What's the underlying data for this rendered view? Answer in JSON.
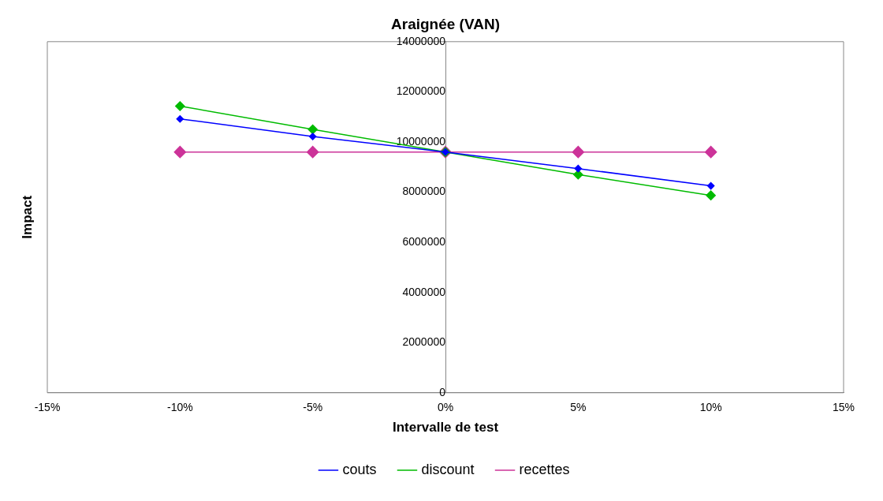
{
  "chart_data": {
    "type": "line",
    "title": "Araignée (VAN)",
    "xlabel": "Intervalle de test",
    "ylabel": "Impact",
    "x": [
      -10,
      -5,
      0,
      5,
      10
    ],
    "series": [
      {
        "name": "couts",
        "color": "#0000ff",
        "values": [
          10920000,
          10220000,
          9600000,
          8940000,
          8250000
        ]
      },
      {
        "name": "discount",
        "color": "#00bb00",
        "values": [
          11430000,
          10500000,
          9600000,
          8700000,
          7870000
        ]
      },
      {
        "name": "recettes",
        "color": "#cc3399",
        "values": [
          9600000,
          9600000,
          9600000,
          9600000,
          9600000
        ]
      }
    ],
    "xlim": [
      -15,
      15
    ],
    "xticks": [
      {
        "value": -15,
        "label": "-15%"
      },
      {
        "value": -10,
        "label": "-10%"
      },
      {
        "value": -5,
        "label": "-5%"
      },
      {
        "value": 0,
        "label": "0%"
      },
      {
        "value": 5,
        "label": "5%"
      },
      {
        "value": 10,
        "label": "10%"
      },
      {
        "value": 15,
        "label": "15%"
      }
    ],
    "ylim": [
      0,
      14000000
    ],
    "yticks": [
      0,
      2000000,
      4000000,
      6000000,
      8000000,
      10000000,
      12000000,
      14000000
    ],
    "grid": false,
    "legend": "bottom",
    "marker": "diamond",
    "line_style": "solid"
  }
}
